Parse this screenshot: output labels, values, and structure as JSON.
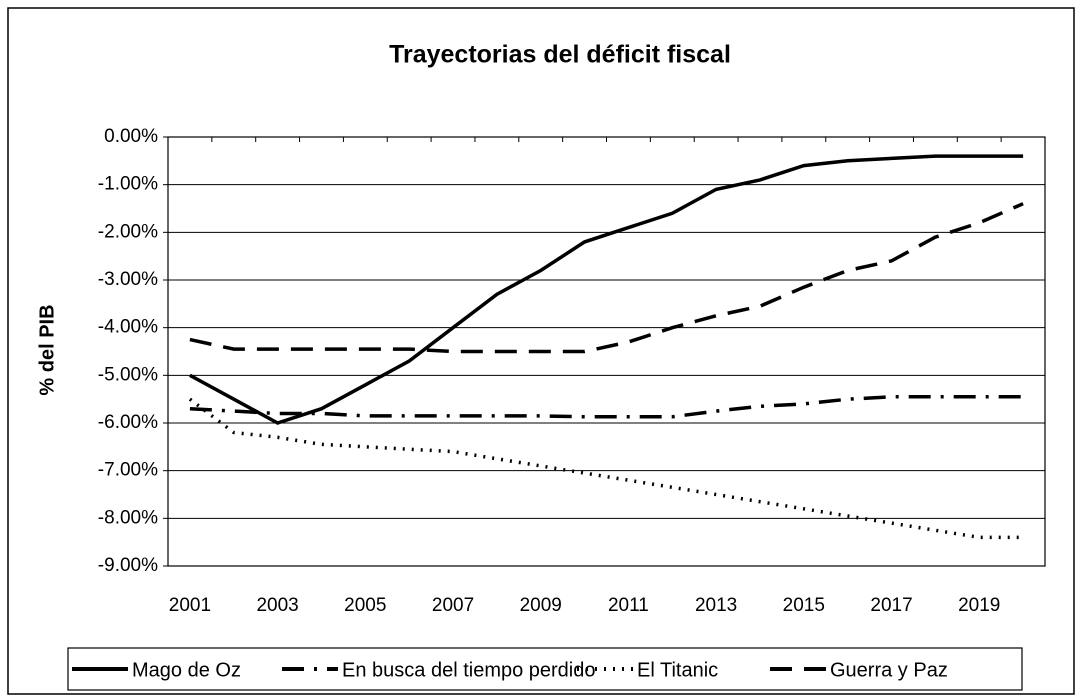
{
  "chart_data": {
    "type": "line",
    "title": "Trayectorias del déficit fiscal",
    "y_label": "% del PIB",
    "categories": [
      "2001",
      null,
      "2003",
      null,
      "2005",
      null,
      "2007",
      null,
      "2009",
      null,
      "2011",
      null,
      "2013",
      null,
      "2015",
      null,
      "2017",
      null,
      "2019",
      null
    ],
    "ylim": [
      -9,
      0
    ],
    "yticks": [
      {
        "value": 0,
        "label": "0.00%"
      },
      {
        "value": -1,
        "label": "-1.00%"
      },
      {
        "value": -2,
        "label": "-2.00%"
      },
      {
        "value": -3,
        "label": "-3.00%"
      },
      {
        "value": -4,
        "label": "-4.00%"
      },
      {
        "value": -5,
        "label": "-5.00%"
      },
      {
        "value": -6,
        "label": "-6.00%"
      },
      {
        "value": -7,
        "label": "-7.00%"
      },
      {
        "value": -8,
        "label": "-8.00%"
      },
      {
        "value": -9,
        "label": "-9.00%"
      }
    ],
    "grid": true,
    "legend": "bottom",
    "series": [
      {
        "name": "Mago de Oz",
        "color": "#000000",
        "dash": "solid",
        "values": [
          -5.0,
          -5.5,
          -6.0,
          -5.7,
          -5.2,
          -4.7,
          -4.0,
          -3.3,
          -2.8,
          -2.2,
          -1.9,
          -1.6,
          -1.1,
          -0.9,
          -0.6,
          -0.5,
          -0.45,
          -0.4,
          -0.4,
          -0.4
        ]
      },
      {
        "name": "En busca del tiempo perdido",
        "color": "#000000",
        "dash": "dashdot",
        "values": [
          -5.7,
          -5.75,
          -5.8,
          -5.8,
          -5.85,
          -5.85,
          -5.85,
          -5.85,
          -5.85,
          -5.87,
          -5.87,
          -5.87,
          -5.75,
          -5.65,
          -5.6,
          -5.5,
          -5.45,
          -5.45,
          -5.45,
          -5.45
        ]
      },
      {
        "name": "El Titanic",
        "color": "#000000",
        "dash": "dotted",
        "values": [
          -5.5,
          -6.2,
          -6.3,
          -6.45,
          -6.5,
          -6.55,
          -6.6,
          -6.75,
          -6.9,
          -7.05,
          -7.2,
          -7.35,
          -7.5,
          -7.65,
          -7.8,
          -7.95,
          -8.1,
          -8.25,
          -8.4,
          -8.4
        ]
      },
      {
        "name": "Guerra y Paz",
        "color": "#000000",
        "dash": "dashed",
        "values": [
          -4.25,
          -4.45,
          -4.45,
          -4.45,
          -4.45,
          -4.45,
          -4.5,
          -4.5,
          -4.5,
          -4.5,
          -4.3,
          -4.0,
          -3.75,
          -3.55,
          -3.15,
          -2.8,
          -2.6,
          -2.1,
          -1.8,
          -1.4
        ]
      }
    ]
  }
}
